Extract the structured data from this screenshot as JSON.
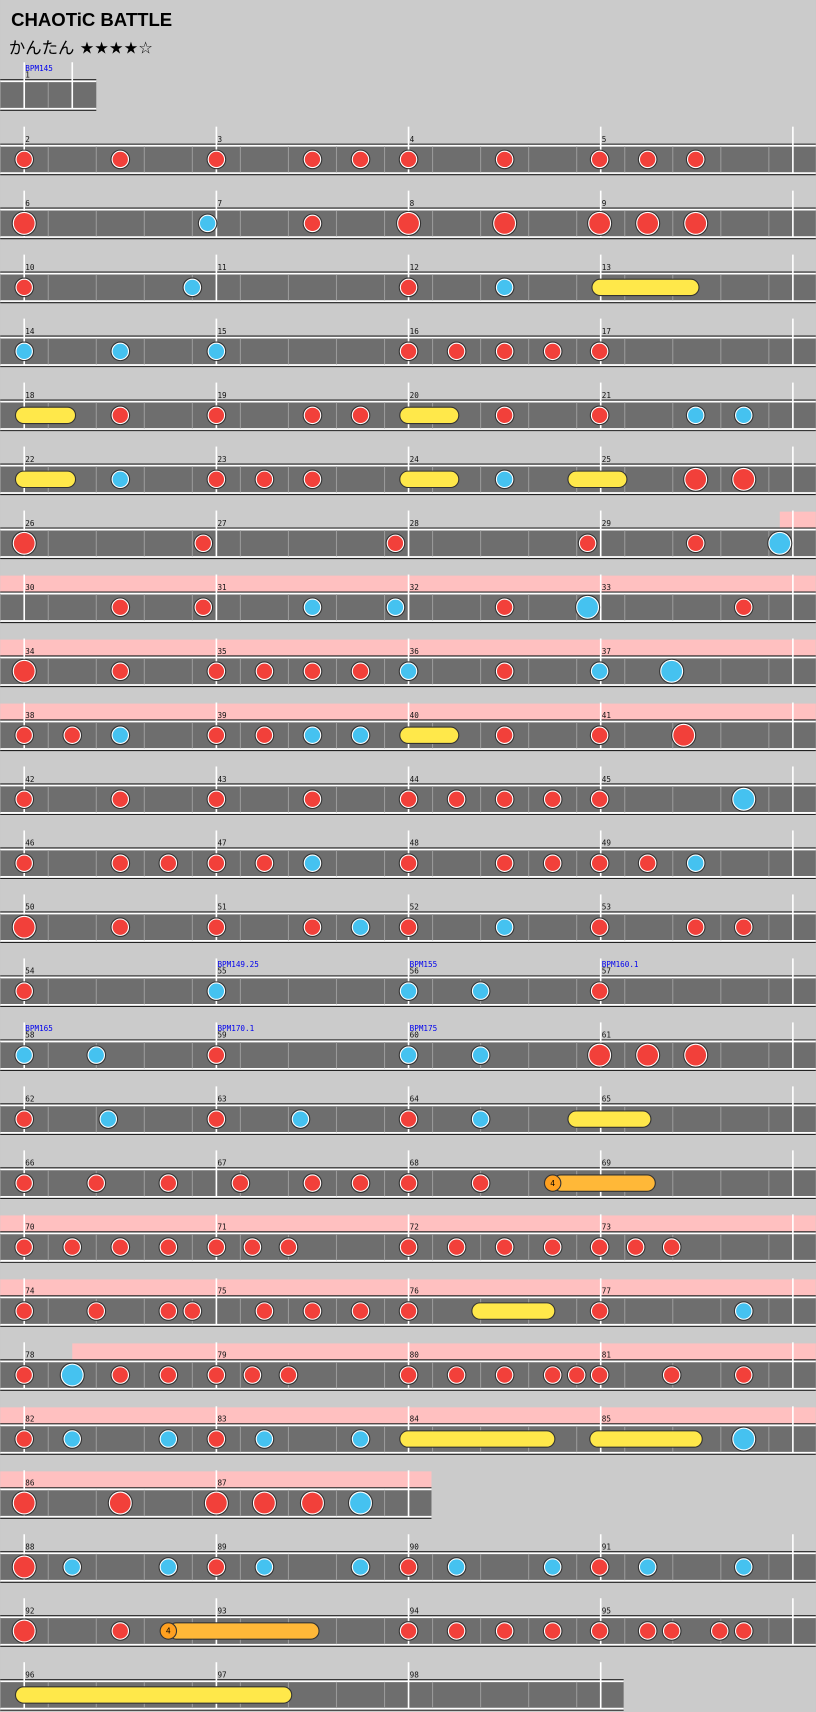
{
  "header": {
    "title": "CHAOTiC BATTLE",
    "difficulty": "かんたん ★★★★☆"
  },
  "rows": [
    {
      "measures": [
        {
          "number": "1",
          "bpm": "BPM145"
        }
      ]
    },
    {
      "measures": [
        {
          "number": "2"
        },
        {
          "number": "3"
        },
        {
          "number": "4"
        },
        {
          "number": "5"
        }
      ]
    },
    {
      "measures": [
        {
          "number": "6"
        },
        {
          "number": "7"
        },
        {
          "number": "8"
        },
        {
          "number": "9"
        }
      ]
    },
    {
      "measures": [
        {
          "number": "10"
        },
        {
          "number": "11"
        },
        {
          "number": "12"
        },
        {
          "number": "13"
        }
      ]
    },
    {
      "measures": [
        {
          "number": "14"
        },
        {
          "number": "15"
        },
        {
          "number": "16"
        },
        {
          "number": "17"
        }
      ]
    },
    {
      "measures": [
        {
          "number": "18"
        },
        {
          "number": "19"
        },
        {
          "number": "20"
        },
        {
          "number": "21"
        }
      ]
    },
    {
      "measures": [
        {
          "number": "22"
        },
        {
          "number": "23"
        },
        {
          "number": "24"
        },
        {
          "number": "25"
        }
      ]
    },
    {
      "measures": [
        {
          "number": "26"
        },
        {
          "number": "27"
        },
        {
          "number": "28"
        },
        {
          "number": "29"
        }
      ]
    },
    {
      "measures": [
        {
          "number": "30"
        },
        {
          "number": "31"
        },
        {
          "number": "32"
        },
        {
          "number": "33"
        }
      ]
    },
    {
      "measures": [
        {
          "number": "34"
        },
        {
          "number": "35"
        },
        {
          "number": "36"
        },
        {
          "number": "37"
        }
      ]
    },
    {
      "measures": [
        {
          "number": "38"
        },
        {
          "number": "39"
        },
        {
          "number": "40"
        },
        {
          "number": "41"
        }
      ]
    },
    {
      "measures": [
        {
          "number": "42"
        },
        {
          "number": "43"
        },
        {
          "number": "44"
        },
        {
          "number": "45"
        }
      ]
    },
    {
      "measures": [
        {
          "number": "46"
        },
        {
          "number": "47"
        },
        {
          "number": "48"
        },
        {
          "number": "49"
        }
      ]
    },
    {
      "measures": [
        {
          "number": "50"
        },
        {
          "number": "51"
        },
        {
          "number": "52"
        },
        {
          "number": "53"
        }
      ]
    },
    {
      "measures": [
        {
          "number": "54"
        },
        {
          "number": "55",
          "bpm": "BPM149.25"
        },
        {
          "number": "56",
          "bpm": "BPM155"
        },
        {
          "number": "57",
          "bpm": "BPM160.1"
        }
      ]
    },
    {
      "measures": [
        {
          "number": "58",
          "bpm": "BPM165"
        },
        {
          "number": "59",
          "bpm": "BPM170.1"
        },
        {
          "number": "60",
          "bpm": "BPM175"
        },
        {
          "number": "61"
        }
      ]
    },
    {
      "measures": [
        {
          "number": "62"
        },
        {
          "number": "63"
        },
        {
          "number": "64"
        },
        {
          "number": "65"
        }
      ]
    },
    {
      "measures": [
        {
          "number": "66"
        },
        {
          "number": "67"
        },
        {
          "number": "68"
        },
        {
          "number": "69"
        }
      ],
      "balloon": "4"
    },
    {
      "measures": [
        {
          "number": "70"
        },
        {
          "number": "71"
        },
        {
          "number": "72"
        },
        {
          "number": "73"
        }
      ]
    },
    {
      "measures": [
        {
          "number": "74"
        },
        {
          "number": "75"
        },
        {
          "number": "76"
        },
        {
          "number": "77"
        }
      ]
    },
    {
      "measures": [
        {
          "number": "78"
        },
        {
          "number": "79"
        },
        {
          "number": "80"
        },
        {
          "number": "81"
        }
      ]
    },
    {
      "measures": [
        {
          "number": "82"
        },
        {
          "number": "83"
        },
        {
          "number": "84"
        },
        {
          "number": "85"
        }
      ]
    },
    {
      "measures": [
        {
          "number": "86"
        },
        {
          "number": "87"
        }
      ]
    },
    {
      "measures": [
        {
          "number": "88"
        },
        {
          "number": "89"
        },
        {
          "number": "90"
        },
        {
          "number": "91"
        }
      ]
    },
    {
      "measures": [
        {
          "number": "92"
        },
        {
          "number": "93"
        },
        {
          "number": "94"
        },
        {
          "number": "95"
        }
      ],
      "balloon": "4"
    },
    {
      "measures": [
        {
          "number": "96"
        },
        {
          "number": "97"
        },
        {
          "number": "98"
        }
      ]
    }
  ]
}
